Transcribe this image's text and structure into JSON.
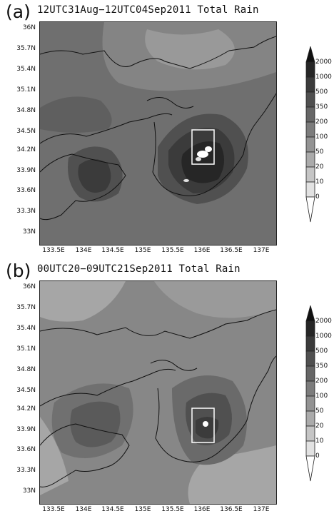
{
  "panels": [
    {
      "label": "(a)",
      "title": "12UTC31Aug−12UTC04Sep2011 Total Rain",
      "base_shade": "#6f6f6f"
    },
    {
      "label": "(b)",
      "title": "00UTC20−09UTC21Sep2011 Total Rain",
      "base_shade": "#878787"
    }
  ],
  "map": {
    "lat_ticks": [
      "36N",
      "35.7N",
      "35.4N",
      "35.1N",
      "34.8N",
      "34.5N",
      "34.2N",
      "33.9N",
      "33.6N",
      "33.3N",
      "33N"
    ],
    "lon_ticks": [
      "133.5E",
      "134E",
      "134.5E",
      "135E",
      "135.5E",
      "136E",
      "136.5E",
      "137E"
    ]
  },
  "colorbar": {
    "levels": [
      "2000",
      "1000",
      "500",
      "350",
      "200",
      "100",
      "50",
      "20",
      "10",
      "0"
    ],
    "shades": [
      "#111111",
      "#262626",
      "#3b3b3b",
      "#505050",
      "#666666",
      "#7c7c7c",
      "#939393",
      "#ababab",
      "#c5c5c5",
      "#e2e2e2",
      "#ffffff"
    ]
  }
}
